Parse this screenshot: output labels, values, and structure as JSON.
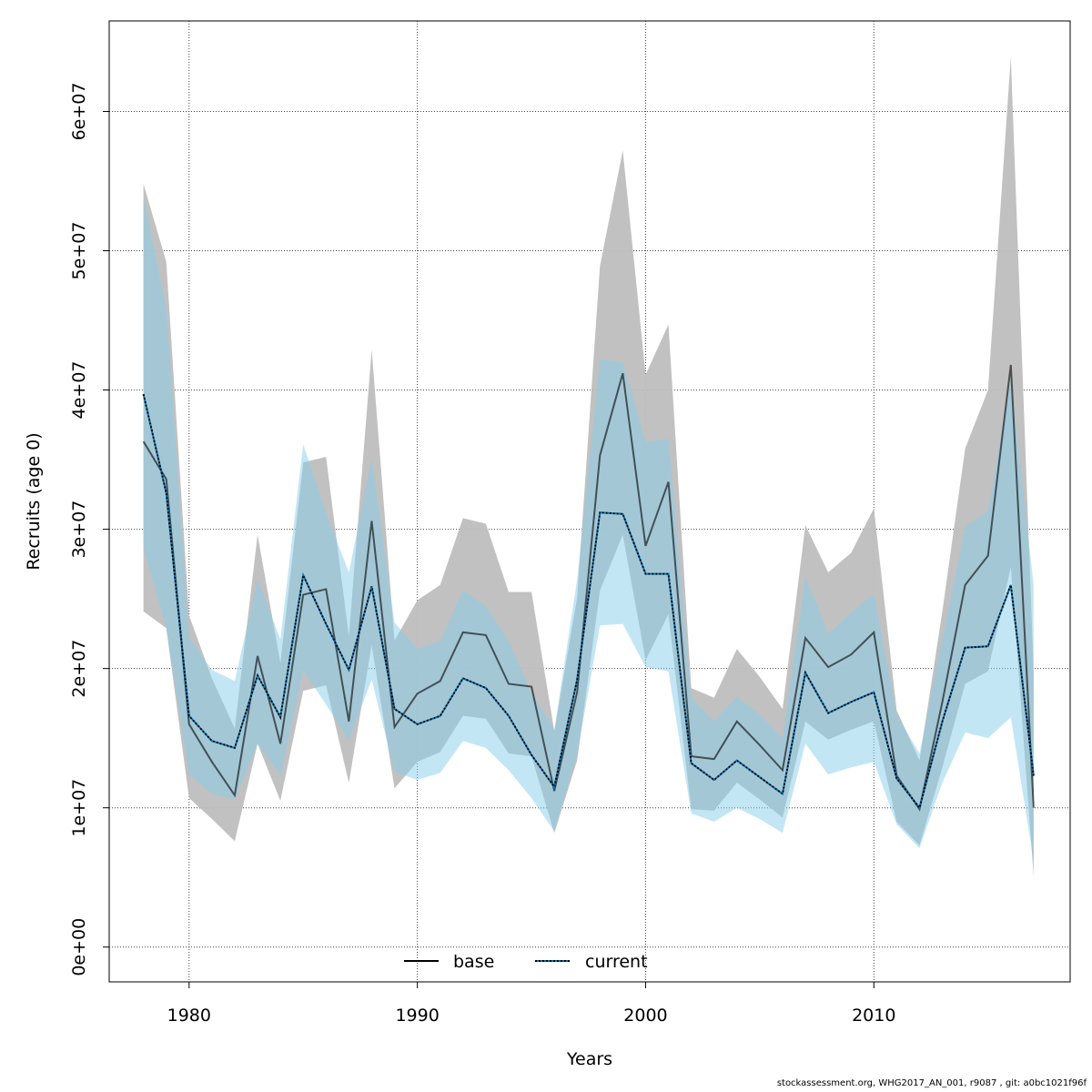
{
  "chart_data": {
    "type": "line",
    "xlabel": "Years",
    "ylabel": "Recruits (age 0)",
    "xlim": [
      1976.5,
      2018.6
    ],
    "ylim": [
      -2500000,
      66500000
    ],
    "x_ticks": [
      1980,
      1990,
      2000,
      2010
    ],
    "x_tick_labels": [
      "1980",
      "1990",
      "2000",
      "2010"
    ],
    "y_ticks": [
      0,
      10000000,
      20000000,
      30000000,
      40000000,
      50000000,
      60000000
    ],
    "y_tick_labels": [
      "0e+00",
      "1e+07",
      "2e+07",
      "3e+07",
      "4e+07",
      "5e+07",
      "6e+07"
    ],
    "grid": true,
    "legend_position": "bottom-center",
    "x": [
      1978,
      1979,
      1980,
      1981,
      1982,
      1983,
      1984,
      1985,
      1986,
      1987,
      1988,
      1989,
      1990,
      1991,
      1992,
      1993,
      1994,
      1995,
      1996,
      1997,
      1998,
      1999,
      2000,
      2001,
      2002,
      2003,
      2004,
      2005,
      2006,
      2007,
      2008,
      2009,
      2010,
      2011,
      2012,
      2013,
      2014,
      2015,
      2016,
      2017
    ],
    "series": [
      {
        "name": "base",
        "color": "#000000",
        "band_color": "#bebebe",
        "line_style": "solid",
        "values": [
          36.3,
          33.6,
          16.0,
          13.3,
          10.9,
          20.9,
          14.6,
          25.3,
          25.7,
          16.2,
          30.6,
          15.8,
          18.2,
          19.1,
          22.6,
          22.4,
          18.9,
          18.7,
          11.2,
          18.3,
          35.3,
          41.2,
          28.8,
          33.4,
          13.7,
          13.5,
          16.2,
          14.5,
          12.7,
          22.2,
          20.1,
          21.0,
          22.6,
          12.3,
          9.9,
          17.6,
          26.0,
          28.1,
          41.8,
          10.0
        ],
        "lower": [
          24.1,
          22.9,
          10.7,
          9.2,
          7.6,
          14.6,
          10.5,
          18.4,
          18.8,
          11.8,
          21.7,
          11.4,
          13.3,
          14.0,
          16.6,
          16.4,
          13.9,
          13.7,
          8.2,
          13.4,
          25.6,
          29.6,
          20.6,
          23.9,
          9.9,
          9.8,
          11.8,
          10.6,
          9.3,
          16.2,
          14.9,
          15.6,
          16.2,
          9.0,
          7.3,
          12.9,
          18.9,
          19.8,
          27.3,
          5.1
        ],
        "upper": [
          54.8,
          49.2,
          23.8,
          19.3,
          15.7,
          29.6,
          20.4,
          34.8,
          35.2,
          22.3,
          42.9,
          22.0,
          24.9,
          26.0,
          30.8,
          30.4,
          25.5,
          25.5,
          15.5,
          25.1,
          48.9,
          57.2,
          41.1,
          44.7,
          18.6,
          17.9,
          21.4,
          19.4,
          17.1,
          30.3,
          26.9,
          28.3,
          31.5,
          17.0,
          13.4,
          24.1,
          35.8,
          40.0,
          63.9,
          19.8
        ]
      },
      {
        "name": "current",
        "color": "#0072b2",
        "band_color": "#87ceeb",
        "line_style": "dotted",
        "values": [
          39.7,
          32.6,
          16.6,
          14.8,
          14.3,
          19.5,
          16.5,
          26.7,
          23.2,
          19.9,
          25.9,
          17.1,
          16.0,
          16.6,
          19.3,
          18.6,
          16.6,
          13.8,
          11.5,
          19.2,
          31.2,
          31.1,
          26.8,
          26.8,
          13.2,
          12.0,
          13.4,
          12.2,
          11.0,
          19.7,
          16.8,
          17.6,
          18.3,
          12.1,
          10.0,
          16.2,
          21.5,
          21.6,
          26.0,
          12.3
        ],
        "lower": [
          28.6,
          22.9,
          12.4,
          11.0,
          10.6,
          14.6,
          12.3,
          19.9,
          17.4,
          14.9,
          19.2,
          12.6,
          12.0,
          12.5,
          14.8,
          14.3,
          12.7,
          10.7,
          8.3,
          13.8,
          23.1,
          23.2,
          20.1,
          19.8,
          9.6,
          9.0,
          10.0,
          9.2,
          8.2,
          14.6,
          12.4,
          12.9,
          13.3,
          8.8,
          7.1,
          11.8,
          15.4,
          15.0,
          16.5,
          6.2
        ],
        "upper": [
          53.8,
          45.9,
          22.2,
          19.9,
          19.1,
          26.4,
          22.1,
          36.1,
          31.2,
          26.9,
          35.1,
          23.3,
          21.4,
          22.0,
          25.6,
          24.5,
          22.0,
          18.3,
          15.6,
          26.4,
          42.2,
          42.0,
          36.3,
          36.5,
          17.9,
          16.2,
          18.0,
          16.7,
          15.0,
          26.6,
          22.5,
          24.0,
          25.4,
          16.7,
          13.9,
          22.2,
          30.2,
          31.3,
          40.8,
          26.0
        ]
      }
    ],
    "value_unit": 1000000,
    "legend": [
      {
        "label": "base"
      },
      {
        "label": "current"
      }
    ]
  },
  "footer": "stockassessment.org, WHG2017_AN_001, r9087 , git: a0bc1021f96f"
}
